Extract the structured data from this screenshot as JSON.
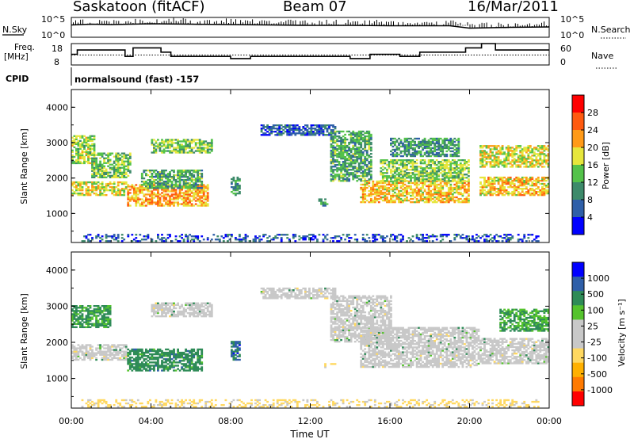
{
  "header": {
    "station": "Saskatoon (fitACF)",
    "beam": "Beam 07",
    "date": "16/Mar/2011"
  },
  "labels": {
    "nsky": "N.Sky",
    "nsky_max": "10^5",
    "nsky_min": "10^0",
    "nsearch": "N.Search",
    "nsearch_max": "10^5",
    "nsearch_min": "10^0",
    "freq_line1": "Freq.",
    "freq_line2": "[MHz]",
    "freq_max": "18",
    "freq_min": "8",
    "nave": "Nave",
    "nave_max": "60",
    "nave_min": "0",
    "cpid": "CPID",
    "cpid_name": "normalsound (fast) -157"
  },
  "colors": {
    "power": [
      "#0000ff",
      "#2f5fa8",
      "#3d8a6a",
      "#54c24a",
      "#e6e63c",
      "#ff9a18",
      "#ff5a10",
      "#ff0000"
    ],
    "velocity": [
      "#ff0000",
      "#ff7a00",
      "#ffb000",
      "#ffd860",
      "#c8c8c8",
      "#c8c8c8",
      "#55c32d",
      "#2e8b57",
      "#2f5fa8",
      "#0000ff"
    ],
    "ground_scatter": "#c8c8c8"
  },
  "chart_data": [
    {
      "type": "heatmap",
      "panel": "power",
      "ylabel": "Slant Range [km]",
      "ylim": [
        180,
        4500
      ],
      "yticks": [
        1000,
        2000,
        3000,
        4000
      ],
      "xlim": [
        0,
        24
      ],
      "xticks": [
        "00:00",
        "04:00",
        "08:00",
        "12:00",
        "16:00",
        "20:00",
        "00:00"
      ],
      "colorbar": {
        "label": "Power [dB]",
        "ticks": [
          "4",
          "8",
          "12",
          "16",
          "20",
          "24",
          "28"
        ],
        "range": [
          0,
          32
        ]
      },
      "bands": [
        {
          "t0": 0.0,
          "t1": 2.8,
          "r0": 1500,
          "r1": 1900,
          "level": 18
        },
        {
          "t0": 0.0,
          "t1": 1.2,
          "r0": 2400,
          "r1": 3200,
          "level": 16
        },
        {
          "t0": 1.0,
          "t1": 3.0,
          "r0": 2000,
          "r1": 2700,
          "level": 14
        },
        {
          "t0": 2.8,
          "t1": 6.8,
          "r0": 1200,
          "r1": 1800,
          "level": 22
        },
        {
          "t0": 3.5,
          "t1": 6.5,
          "r0": 1700,
          "r1": 2200,
          "level": 12
        },
        {
          "t0": 4.0,
          "t1": 7.0,
          "r0": 2700,
          "r1": 3100,
          "level": 15
        },
        {
          "t0": 8.0,
          "t1": 8.4,
          "r0": 1500,
          "r1": 2000,
          "level": 10
        },
        {
          "t0": 9.5,
          "t1": 13.2,
          "r0": 3200,
          "r1": 3500,
          "level": 6
        },
        {
          "t0": 12.4,
          "t1": 12.8,
          "r0": 1200,
          "r1": 1400,
          "level": 8
        },
        {
          "t0": 13.0,
          "t1": 15.0,
          "r0": 1900,
          "r1": 3300,
          "level": 12
        },
        {
          "t0": 14.5,
          "t1": 20.0,
          "r0": 1300,
          "r1": 1900,
          "level": 20
        },
        {
          "t0": 15.5,
          "t1": 20.0,
          "r0": 1900,
          "r1": 2500,
          "level": 15
        },
        {
          "t0": 16.0,
          "t1": 19.5,
          "r0": 2600,
          "r1": 3100,
          "level": 11
        },
        {
          "t0": 20.5,
          "t1": 24.0,
          "r0": 1500,
          "r1": 2000,
          "level": 20
        },
        {
          "t0": 20.5,
          "t1": 24.0,
          "r0": 2300,
          "r1": 2900,
          "level": 18
        },
        {
          "t0": 0.5,
          "t1": 23.5,
          "r0": 200,
          "r1": 400,
          "level": 6
        }
      ]
    },
    {
      "type": "heatmap",
      "panel": "velocity",
      "ylabel": "Slant Range [km]",
      "ylim": [
        180,
        4500
      ],
      "yticks": [
        1000,
        2000,
        3000,
        4000
      ],
      "xlim": [
        0,
        24
      ],
      "xticks": [
        "00:00",
        "04:00",
        "08:00",
        "12:00",
        "16:00",
        "20:00",
        "00:00"
      ],
      "xlabel": "Time UT",
      "colorbar": {
        "label": "Velocity [m s⁻¹]",
        "ticks": [
          "-1000",
          "-500",
          "-100",
          "-25",
          "25",
          "100",
          "500",
          "1000"
        ],
        "range": [
          -1500,
          1500
        ]
      },
      "bands": [
        {
          "t0": 0.0,
          "t1": 2.8,
          "r0": 1500,
          "r1": 1950,
          "vel": "ground"
        },
        {
          "t0": 0.0,
          "t1": 2.0,
          "r0": 2400,
          "r1": 3000,
          "vel": 150
        },
        {
          "t0": 2.8,
          "t1": 6.5,
          "r0": 1200,
          "r1": 1800,
          "vel": 300
        },
        {
          "t0": 4.0,
          "t1": 7.0,
          "r0": 2700,
          "r1": 3100,
          "vel": "ground"
        },
        {
          "t0": 8.0,
          "t1": 8.4,
          "r0": 1500,
          "r1": 2000,
          "vel": 600
        },
        {
          "t0": 9.5,
          "t1": 13.2,
          "r0": 3200,
          "r1": 3500,
          "vel": "ground"
        },
        {
          "t0": 12.4,
          "t1": 13.2,
          "r0": 1200,
          "r1": 1400,
          "vel": -200
        },
        {
          "t0": 13.0,
          "t1": 16.0,
          "r0": 2000,
          "r1": 3300,
          "vel": "ground"
        },
        {
          "t0": 14.5,
          "t1": 20.5,
          "r0": 1300,
          "r1": 2400,
          "vel": "ground"
        },
        {
          "t0": 20.5,
          "t1": 24.0,
          "r0": 1400,
          "r1": 2100,
          "vel": "ground"
        },
        {
          "t0": 21.5,
          "t1": 24.0,
          "r0": 2300,
          "r1": 2900,
          "vel": 120
        },
        {
          "t0": 0.5,
          "t1": 23.5,
          "r0": 200,
          "r1": 400,
          "vel": -150
        }
      ]
    },
    {
      "type": "line",
      "panel": "noise",
      "series": [
        {
          "name": "N.Sky",
          "x": [
            0,
            1,
            2,
            4,
            6,
            8,
            10,
            12,
            14,
            16,
            18,
            19,
            20,
            22,
            24
          ],
          "y": [
            3.1,
            3.3,
            3.2,
            3.4,
            3.3,
            3.2,
            3.1,
            3.0,
            3.0,
            2.9,
            2.9,
            2.9,
            2.3,
            2.5,
            2.6
          ]
        }
      ]
    },
    {
      "type": "line",
      "panel": "frequency",
      "series": [
        {
          "name": "Freq.",
          "x": [
            0,
            0.3,
            0.3,
            2.7,
            2.7,
            3.1,
            3.1,
            4.5,
            4.5,
            5.0,
            5.0,
            8.0,
            8.0,
            9.0,
            9.0,
            14.0,
            14.0,
            15.0,
            15.0,
            16.5,
            16.5,
            17.5,
            17.5,
            19.8,
            19.8,
            20.6,
            20.6,
            21.3,
            21.3,
            24.0
          ],
          "y": [
            13,
            13,
            15,
            15,
            12,
            12,
            16,
            16,
            14,
            14,
            12,
            12,
            11,
            11,
            12,
            12,
            11,
            11,
            13,
            13,
            12,
            12,
            14,
            14,
            16,
            16,
            18,
            18,
            15,
            15
          ]
        },
        {
          "name": "Nave",
          "x": [
            0,
            24
          ],
          "y": [
            28,
            28
          ]
        }
      ]
    }
  ]
}
